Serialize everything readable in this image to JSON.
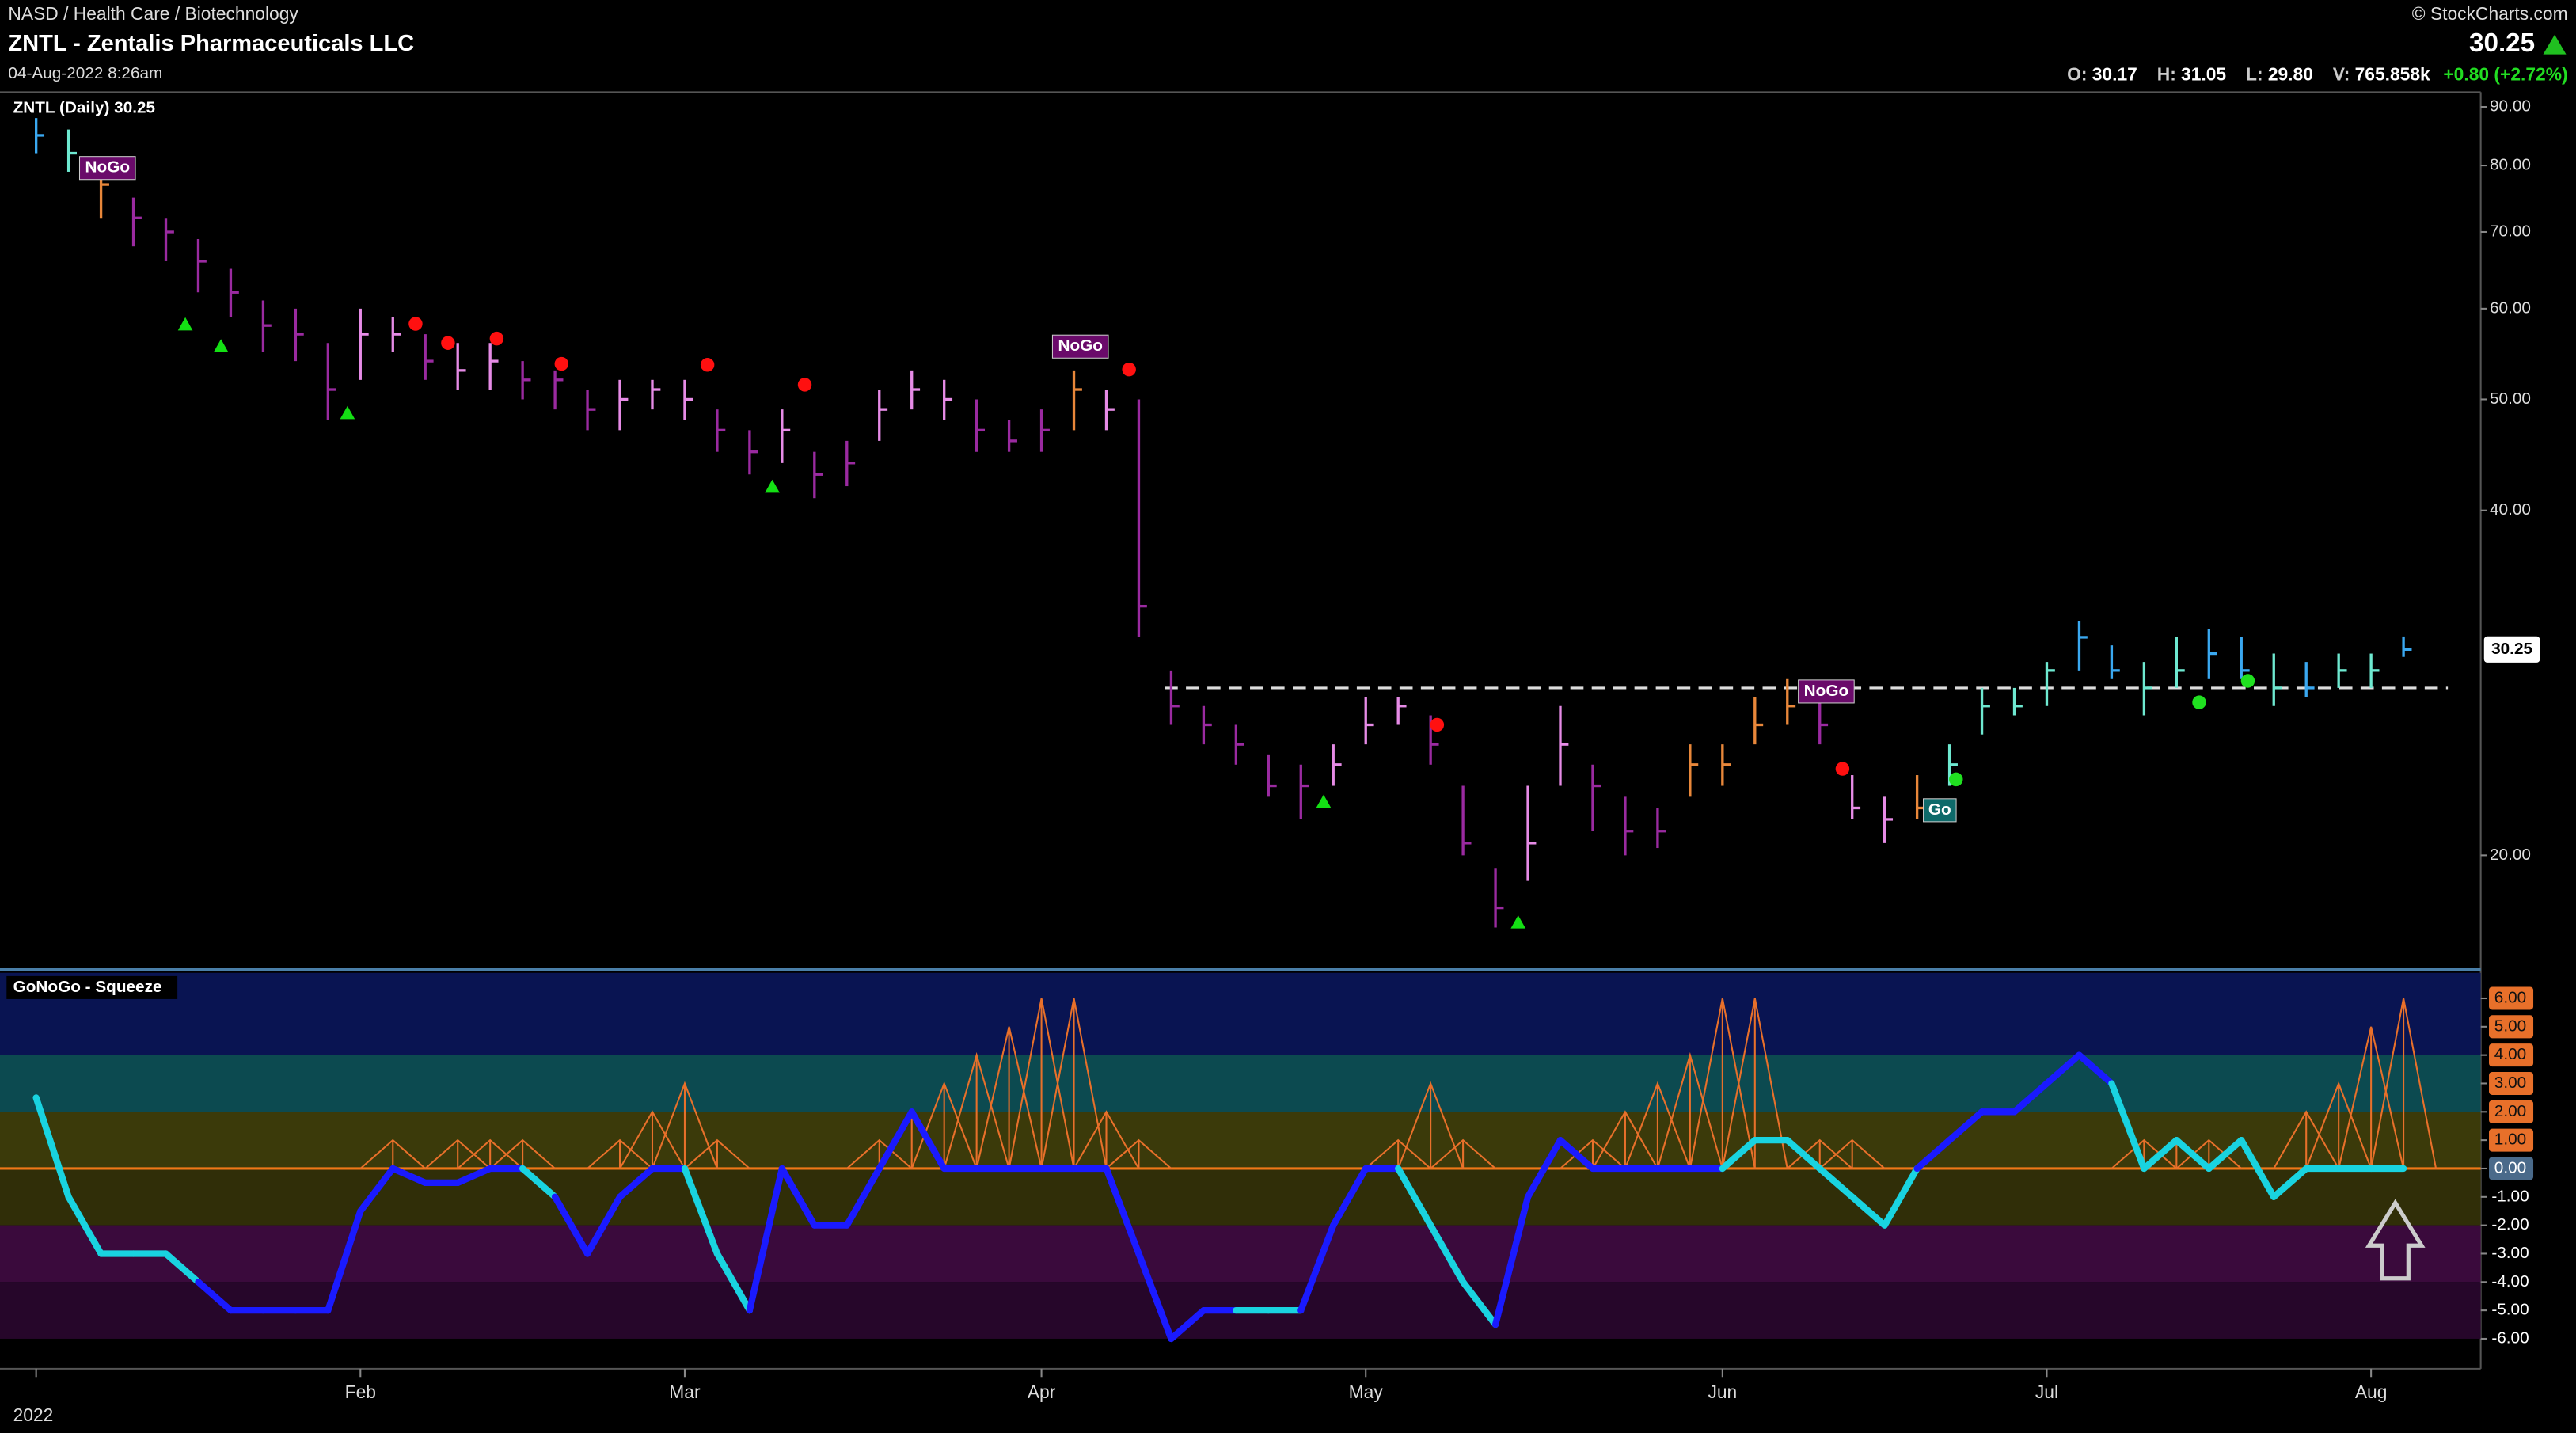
{
  "header": {
    "exchange": "NASD / Health Care / Biotechnology",
    "symbol": "ZNTL - Zentalis Pharmaceuticals LLC",
    "timestamp": "04-Aug-2022 8:26am",
    "source": "© StockCharts.com",
    "last": "30.25",
    "quote": [
      [
        "O:",
        "30.17"
      ],
      [
        "H:",
        "31.05"
      ],
      [
        "L:",
        "29.80"
      ],
      [
        "V:",
        "765.858k"
      ]
    ],
    "change": "+0.80 (+2.72%)"
  },
  "chart_data": [
    {
      "type": "ohlc",
      "title": "ZNTL (Daily) 30.25",
      "log_scale": true,
      "categories": [
        "2022",
        null,
        null,
        null,
        null,
        null,
        null,
        null,
        null,
        null,
        "Feb",
        null,
        null,
        null,
        null,
        null,
        null,
        null,
        null,
        null,
        "Mar",
        null,
        null,
        null,
        null,
        null,
        null,
        null,
        null,
        null,
        null,
        "Apr",
        null,
        null,
        null,
        null,
        null,
        null,
        null,
        null,
        null,
        "May",
        null,
        null,
        null,
        null,
        null,
        null,
        null,
        null,
        null,
        null,
        "Jun",
        null,
        null,
        null,
        null,
        null,
        null,
        null,
        null,
        null,
        "Jul",
        null,
        null,
        null,
        null,
        null,
        null,
        null,
        null,
        null,
        "Aug",
        null
      ],
      "close": [
        85,
        82,
        77,
        72,
        70,
        66,
        62,
        58,
        57,
        51,
        57,
        57,
        54,
        53,
        54,
        52,
        52,
        49,
        50,
        51,
        50,
        47,
        45,
        47,
        43,
        44,
        49,
        51,
        50,
        47,
        46,
        47,
        51,
        49,
        33,
        27,
        26,
        25,
        23,
        23,
        24,
        26,
        27,
        25,
        20.5,
        18,
        20.5,
        25,
        23,
        21,
        21,
        24,
        24,
        26,
        27,
        26,
        22,
        21.5,
        22,
        24,
        27,
        27,
        29,
        31,
        29,
        28,
        29,
        30,
        29,
        28,
        28,
        29,
        29,
        30.25
      ],
      "high": [
        88,
        86,
        81,
        75,
        72,
        69,
        65,
        61,
        60,
        56,
        60,
        59,
        57,
        56,
        56,
        54,
        53,
        51,
        52,
        52,
        52,
        49,
        47,
        49,
        45,
        46,
        51,
        53,
        52,
        50,
        48,
        49,
        53,
        51,
        50,
        29,
        27,
        26,
        24.5,
        24,
        25,
        27.5,
        27.5,
        26.5,
        23,
        19.5,
        23,
        27,
        24,
        22.5,
        22,
        25,
        25,
        27.5,
        28.5,
        28,
        23.5,
        22.5,
        23.5,
        25,
        28,
        28,
        29.5,
        32,
        30.5,
        29.5,
        31,
        31.5,
        31,
        30,
        29.5,
        30,
        30,
        31.05
      ],
      "low": [
        82,
        79,
        72,
        68,
        66,
        62,
        59,
        55,
        54,
        48,
        52,
        55,
        52,
        51,
        51,
        50,
        49,
        47,
        47,
        49,
        48,
        45,
        43,
        44,
        41,
        42,
        46,
        49,
        48,
        45,
        45,
        45,
        47,
        47,
        31,
        26,
        25,
        24,
        22.5,
        21.5,
        23,
        25,
        26,
        24,
        20,
        17.3,
        19,
        23,
        21,
        20,
        20.3,
        22.5,
        23,
        25,
        26,
        25,
        21.5,
        20.5,
        21.5,
        23,
        25.5,
        26.5,
        27,
        29,
        28.5,
        26.5,
        28,
        28.5,
        28.5,
        27,
        27.5,
        28,
        28,
        29.8
      ],
      "colors": [
        "#3aa8f0",
        "#6ee8d0",
        "#e8873a",
        "#9a2aa0",
        "#9a2aa0",
        "#9a2aa0",
        "#9a2aa0",
        "#9a2aa0",
        "#9a2aa0",
        "#9a2aa0",
        "#e68be6",
        "#e68be6",
        "#9a2aa0",
        "#e68be6",
        "#e68be6",
        "#9a2aa0",
        "#9a2aa0",
        "#9a2aa0",
        "#e68be6",
        "#e68be6",
        "#e68be6",
        "#9a2aa0",
        "#9a2aa0",
        "#e68be6",
        "#9a2aa0",
        "#9a2aa0",
        "#e68be6",
        "#e68be6",
        "#e68be6",
        "#9a2aa0",
        "#9a2aa0",
        "#9a2aa0",
        "#e8873a",
        "#e68be6",
        "#9a2aa0",
        "#9a2aa0",
        "#9a2aa0",
        "#9a2aa0",
        "#9a2aa0",
        "#9a2aa0",
        "#e68be6",
        "#e68be6",
        "#e68be6",
        "#9a2aa0",
        "#9a2aa0",
        "#9a2aa0",
        "#e68be6",
        "#e68be6",
        "#9a2aa0",
        "#9a2aa0",
        "#9a2aa0",
        "#e8873a",
        "#e8873a",
        "#e8873a",
        "#e8873a",
        "#9a2aa0",
        "#e68be6",
        "#e68be6",
        "#e8873a",
        "#6ee8d0",
        "#6ee8d0",
        "#6ee8d0",
        "#6ee8d0",
        "#3aa8f0",
        "#3aa8f0",
        "#6ee8d0",
        "#6ee8d0",
        "#3aa8f0",
        "#3aa8f0",
        "#6ee8d0",
        "#3aa8f0",
        "#6ee8d0",
        "#6ee8d0",
        "#3aa8f0"
      ],
      "ylim": [
        15.9,
        92.4
      ],
      "yticks": [
        {
          "value": 20,
          "label": "20.00"
        },
        {
          "value": 40,
          "label": "40.00"
        },
        {
          "value": 50,
          "label": "50.00"
        },
        {
          "value": 60,
          "label": "60.00"
        },
        {
          "value": 70,
          "label": "70.00"
        },
        {
          "value": 80,
          "label": "80.00"
        },
        {
          "value": 90,
          "label": "90.00"
        }
      ],
      "reference_line": 28,
      "price_tag": {
        "value": 30.25,
        "label": "30.25"
      },
      "signals": [
        {
          "x": 4.6,
          "y": 58.2,
          "shape": "triangle",
          "color": "#14e014"
        },
        {
          "x": 5.7,
          "y": 55.7,
          "shape": "triangle",
          "color": "#14e014"
        },
        {
          "x": 9.6,
          "y": 48.7,
          "shape": "triangle",
          "color": "#14e014"
        },
        {
          "x": 22.7,
          "y": 42,
          "shape": "triangle",
          "color": "#14e014"
        },
        {
          "x": 39.7,
          "y": 22.3,
          "shape": "triangle",
          "color": "#14e014"
        },
        {
          "x": 45.7,
          "y": 17.5,
          "shape": "triangle",
          "color": "#14e014"
        },
        {
          "x": 11.7,
          "y": 58.2,
          "shape": "dot",
          "color": "#ff1010"
        },
        {
          "x": 12.7,
          "y": 56,
          "shape": "dot",
          "color": "#ff1010"
        },
        {
          "x": 14.2,
          "y": 56.5,
          "shape": "dot",
          "color": "#ff1010"
        },
        {
          "x": 16.2,
          "y": 53.7,
          "shape": "dot",
          "color": "#ff1010"
        },
        {
          "x": 20.7,
          "y": 53.6,
          "shape": "dot",
          "color": "#ff1010"
        },
        {
          "x": 23.7,
          "y": 51.5,
          "shape": "dot",
          "color": "#ff1010"
        },
        {
          "x": 33.7,
          "y": 53.1,
          "shape": "dot",
          "color": "#ff1010"
        },
        {
          "x": 43.2,
          "y": 26,
          "shape": "dot",
          "color": "#ff1010"
        },
        {
          "x": 55.7,
          "y": 23.8,
          "shape": "dot",
          "color": "#ff1010"
        },
        {
          "x": 59.2,
          "y": 23.3,
          "shape": "dot",
          "color": "#20e020"
        },
        {
          "x": 66.7,
          "y": 27.2,
          "shape": "dot",
          "color": "#20e020"
        },
        {
          "x": 68.2,
          "y": 28.4,
          "shape": "dot",
          "color": "#20e020"
        }
      ],
      "annotations": [
        {
          "text": "NoGo",
          "x": 2.2,
          "y": 79.6,
          "color": "#6a0a6a"
        },
        {
          "text": "NoGo",
          "x": 32.2,
          "y": 55.6,
          "color": "#6a0a6a"
        },
        {
          "text": "NoGo",
          "x": 55.2,
          "y": 27.8,
          "color": "#6a0a6a"
        },
        {
          "text": "Go",
          "x": 58.7,
          "y": 21.9,
          "color": "#0e6a6a"
        }
      ]
    },
    {
      "type": "line",
      "title": "GoNoGo - Squeeze",
      "values": [
        2.5,
        -1,
        -3,
        -3,
        -3,
        -4,
        -5,
        -5,
        -5,
        -5,
        -1.5,
        0,
        -0.5,
        -0.5,
        0,
        0,
        -1,
        -3,
        -1,
        0,
        0,
        -3,
        -5,
        0,
        -2,
        -2,
        0,
        2,
        0,
        0,
        0,
        0,
        0,
        0,
        -3,
        -6,
        -5,
        -5,
        -5,
        -5,
        -2,
        0,
        0,
        -2,
        -4,
        -5.5,
        -1,
        1,
        0,
        0,
        0,
        0,
        0,
        1,
        1,
        0,
        -1,
        -2,
        0,
        1,
        2,
        2,
        3,
        4,
        3,
        0,
        1,
        0,
        1,
        -1,
        0,
        0,
        0,
        0
      ],
      "colors": [
        "#19d3e0",
        "#19d3e0",
        "#19d3e0",
        "#19d3e0",
        "#19d3e0",
        "#19d3e0",
        "#1a1aff",
        "#1a1aff",
        "#1a1aff",
        "#1a1aff",
        "#1a1aff",
        "#1a1aff",
        "#1a1aff",
        "#1a1aff",
        "#1a1aff",
        "#1a1aff",
        "#19d3e0",
        "#1a1aff",
        "#1a1aff",
        "#1a1aff",
        "#1a1aff",
        "#19d3e0",
        "#19d3e0",
        "#1a1aff",
        "#1a1aff",
        "#1a1aff",
        "#1a1aff",
        "#1a1aff",
        "#1a1aff",
        "#1a1aff",
        "#1a1aff",
        "#1a1aff",
        "#1a1aff",
        "#1a1aff",
        "#1a1aff",
        "#1a1aff",
        "#1a1aff",
        "#1a1aff",
        "#19d3e0",
        "#19d3e0",
        "#1a1aff",
        "#1a1aff",
        "#1a1aff",
        "#19d3e0",
        "#19d3e0",
        "#19d3e0",
        "#1a1aff",
        "#1a1aff",
        "#1a1aff",
        "#1a1aff",
        "#1a1aff",
        "#1a1aff",
        "#1a1aff",
        "#19d3e0",
        "#19d3e0",
        "#19d3e0",
        "#19d3e0",
        "#19d3e0",
        "#19d3e0",
        "#1a1aff",
        "#1a1aff",
        "#1a1aff",
        "#1a1aff",
        "#1a1aff",
        "#1a1aff",
        "#19d3e0",
        "#19d3e0",
        "#19d3e0",
        "#19d3e0",
        "#19d3e0",
        "#19d3e0",
        "#19d3e0",
        "#19d3e0",
        "#19d3e0"
      ],
      "squeeze": [
        0,
        0,
        0,
        0,
        0,
        0,
        0,
        0,
        0,
        0,
        0,
        1,
        0,
        1,
        1,
        1,
        0,
        0,
        1,
        2,
        3,
        1,
        0,
        0,
        0,
        0,
        1,
        2,
        3,
        4,
        5,
        6,
        6,
        2,
        1,
        0,
        0,
        0,
        0,
        0,
        0,
        0,
        1,
        3,
        1,
        0,
        0,
        0,
        1,
        2,
        3,
        4,
        6,
        6,
        0,
        1,
        1,
        0,
        0,
        0,
        0,
        0,
        0,
        0,
        0,
        1,
        1,
        1,
        0,
        0,
        2,
        3,
        5,
        6
      ],
      "squeeze_color": "#e8702a",
      "zero_line_color": "#f07818",
      "bands": [
        {
          "from": 4,
          "to": 6.9,
          "color": "#091452"
        },
        {
          "from": 2,
          "to": 4,
          "color": "#0c4a50"
        },
        {
          "from": 0,
          "to": 2,
          "color": "#3b3a0a"
        },
        {
          "from": -2,
          "to": 0,
          "color": "#302e08"
        },
        {
          "from": -4,
          "to": -2,
          "color": "#3a0a3c"
        },
        {
          "from": -6,
          "to": -4,
          "color": "#26062a"
        }
      ],
      "ylim": [
        -7,
        6.9
      ],
      "yticks": [
        {
          "value": -6,
          "label": "-6.00"
        },
        {
          "value": -5,
          "label": "-5.00"
        },
        {
          "value": -4,
          "label": "-4.00"
        },
        {
          "value": -3,
          "label": "-3.00"
        },
        {
          "value": -2,
          "label": "-2.00"
        },
        {
          "value": -1,
          "label": "-1.00"
        },
        {
          "value": 0,
          "label": "0.00"
        },
        {
          "value": 1,
          "label": "1.00"
        },
        {
          "value": 2,
          "label": "2.00"
        },
        {
          "value": 3,
          "label": "3.00"
        },
        {
          "value": 4,
          "label": "4.00"
        },
        {
          "value": 5,
          "label": "5.00"
        },
        {
          "value": 6,
          "label": "6.00"
        }
      ]
    }
  ]
}
